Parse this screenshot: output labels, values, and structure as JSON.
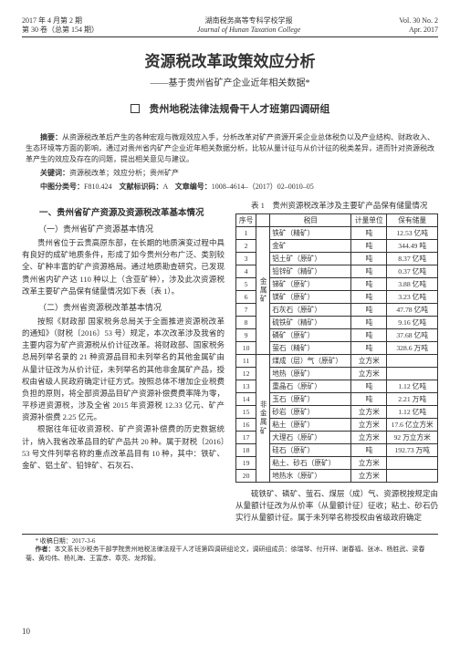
{
  "header": {
    "left_line1": "2017 年 4 月第 2 期",
    "left_line2": "第 30 卷（总第 154 期）",
    "center_line1": "湖南税务高等专科学校学报",
    "center_line2": "Journal of Hunan Taxation College",
    "right_line1": "Vol. 30 No. 2",
    "right_line2": "Apr. 2017"
  },
  "title": "资源税改革政策效应分析",
  "subtitle": "——基于贵州省矿产企业近年相关数据*",
  "author": "贵州地税法律法规骨干人才班第四调研组",
  "abstract_label": "摘要：",
  "abstract_text": "从资源税改革后产生的各种宏观与微观效应入手，分析改革对矿产资源开采企业总体税负以及产业结构、财政收入、生态环境等方面的影响，通过对贵州省内矿产企业近年相关数据分析，比较从量计征与从价计征的税类差异，进而针对资源税改革产生的效应及存在的问题，提出相关意见与建议。",
  "keywords_label": "关键词：",
  "keywords_text": "资源税改革；效应分析；贵州矿产",
  "clc_label": "中图分类号：",
  "clc_value": "F810.424",
  "doc_code_label": "文献标识码：",
  "doc_code_value": "A",
  "article_id_label": "文章编号：",
  "article_id_value": "1008–4614–（2017）02–0010–05",
  "section1": "一、贵州省矿产资源及资源税改革基本情况",
  "sub1": "（一）贵州省矿产资源基本情况",
  "para1": "贵州省位于云贵高原东部，在长期的地质演变过程中具有良好的成矿地质条件，形成了如今贵州分布广泛、类别较全、矿种丰富的矿产资源格局。通过地质勘查研究，已发现贵州省内矿产达 110 种以上（含亚矿种），涉及此次资源税改革主要矿产品保有储量情况如下表（表 1）。",
  "sub2": "（二）贵州省资源税改革基本情况",
  "para2": "按照《财政部 国家税务总局关于全面推进资源税改革的通知》（财税〔2016〕53 号）规定，本次改革涉及我省的主要内容为矿产资源税从价计征改革。将财政部、国家税务总局列举名录的 21 种资源品目和未列举名的其他金属矿由从量计征改为从价计征，未列举名的其他非金属矿产品，授权由省级人民政府确定计征方式。按照总体不增加企业税费负担的原则，将全部资源品目矿产资源补偿费费率降为零，平移进资源税，涉及全省 2015 年资源税 12.33 亿元、矿产资源补偿费 2.25 亿元。",
  "para3": "根据往年征收资源税、矿产资源补偿费的历史数据统计，纳入我省改革品目的矿产品共 20 种。属于财税〔2016〕53 号文件列举名称的重点改革品目有 10 种，其中：铁矿、金矿、铝土矿、铅锌矿、石灰石、",
  "table_caption": "表 1　贵州资源税改革涉及主要矿产品保有储量情况",
  "table": {
    "headers": [
      "序号",
      "",
      "税目",
      "计量单位",
      "保有储量"
    ],
    "group_metal": "金属矿",
    "group_nonmetal": "非金属矿",
    "rows_metal": [
      [
        "1",
        "铁矿（精矿）",
        "吨",
        "12.53 亿吨"
      ],
      [
        "2",
        "金矿",
        "吨",
        "344.49 吨"
      ],
      [
        "3",
        "铝土矿（原矿）",
        "吨",
        "8.37 亿吨"
      ],
      [
        "4",
        "铅锌矿（精矿）",
        "吨",
        "0.37 亿吨"
      ],
      [
        "5",
        "锑矿（原矿）",
        "吨",
        "3.88 亿吨"
      ],
      [
        "6",
        "镁矿（原矿）",
        "吨",
        "3.23 亿吨"
      ],
      [
        "7",
        "石灰石（原矿）",
        "吨",
        "47.78 亿吨"
      ],
      [
        "8",
        "硫铁矿（精矿）",
        "吨",
        "9.16 亿吨"
      ],
      [
        "9",
        "磷矿（原矿）",
        "吨",
        "37.68 亿吨"
      ],
      [
        "10",
        "萤石（精矿）",
        "吨",
        "328.6 万吨"
      ]
    ],
    "rows_nonmetal": [
      [
        "11",
        "煤成（层）气（原矿）",
        "立方米",
        ""
      ],
      [
        "12",
        "地热（原矿）",
        "立方米",
        ""
      ],
      [
        "13",
        "重晶石（原矿）",
        "吨",
        "1.12 亿吨"
      ],
      [
        "14",
        "玉石（原矿）",
        "吨",
        "2.21 万吨"
      ],
      [
        "15",
        "砂岩（原矿）",
        "立方米",
        "1.12 亿吨"
      ],
      [
        "16",
        "粘土（原矿）",
        "立方米",
        "17.6 亿立方米"
      ],
      [
        "17",
        "大理石（原矿）",
        "立方米",
        "92 万立方米"
      ],
      [
        "18",
        "硅石（原矿）",
        "吨",
        "192.73 万吨"
      ],
      [
        "19",
        "粘土、砂石（原矿）",
        "立方米",
        ""
      ],
      [
        "20",
        "地热水（原矿）",
        "立方米",
        ""
      ]
    ]
  },
  "para_right": "硫铁矿、磷矿、萤石、煤层（成）气、资源税按规定由从量额计征改为从价率（从量额计征）征收；粘土、砂石仍实行从量额计征。属于未列举名称授权由省级政府确定",
  "footnote_date_label": "* 收稿日期：",
  "footnote_date": "2017-3-6",
  "footnote_author_label": "作者：",
  "footnote_author": "本文系长沙税务干部学院贵州地税法律法规干人才班第四调研组论文，调研组成员：徐瑞琴、付开祥、谢春福、张冰、杨胜武、梁春菊、黄均伟、杨礼海、王富彦、章亮、龙邦智。",
  "page_number": "10"
}
